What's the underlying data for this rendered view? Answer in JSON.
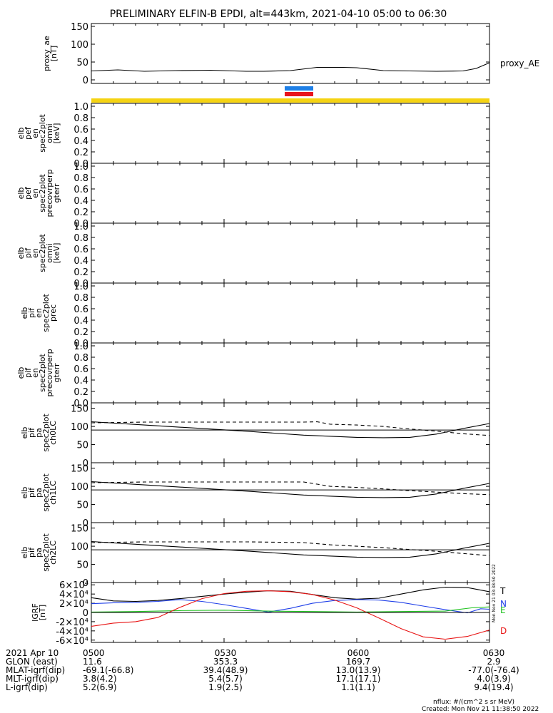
{
  "title": "PRELIMINARY ELFIN-B EPDI, alt=443km, 2021-04-10 05:00 to 06:30",
  "colors": {
    "bar_blue": "#1e7fe6",
    "bar_red": "#e8141e",
    "yellow": "#f5d312",
    "T": "#000000",
    "N": "#1f3fe8",
    "E": "#1fc21f",
    "D": "#e81414"
  },
  "chart_data": [
    {
      "type": "line",
      "ylabel": [
        "proxy_ae",
        "[nT]"
      ],
      "yticks": [
        0,
        50,
        100,
        150
      ],
      "ylim": [
        -10,
        158
      ],
      "series": [
        {
          "name": "proxy_AE",
          "x": [
            "05:00",
            "05:06",
            "05:12",
            "05:19",
            "05:27",
            "05:35",
            "05:39",
            "05:45",
            "05:51",
            "05:54",
            "05:57",
            "06:00",
            "06:06",
            "06:12",
            "06:18",
            "06:24",
            "06:27",
            "06:30"
          ],
          "values": [
            25,
            28,
            24,
            26,
            27,
            24,
            24,
            26,
            35,
            35,
            35,
            34,
            26,
            25,
            24,
            25,
            32,
            48
          ]
        }
      ]
    },
    {
      "type": "line",
      "ylabel": [
        "elb",
        "pef",
        "en",
        "spec2plot",
        "omni",
        "[keV]"
      ],
      "yticks": [
        0.0,
        0.2,
        0.4,
        0.6,
        0.8,
        1.0
      ],
      "ylim": [
        0,
        1.05
      ],
      "series": []
    },
    {
      "type": "line",
      "ylabel": [
        "elb",
        "pef",
        "en",
        "spec2plot",
        "precovrperp",
        "gterr"
      ],
      "yticks": [
        0.0,
        0.2,
        0.4,
        0.6,
        0.8,
        1.0
      ],
      "ylim": [
        0,
        1.05
      ],
      "series": []
    },
    {
      "type": "line",
      "ylabel": [
        "elb",
        "pif",
        "en",
        "spec2plot",
        "omni",
        "[keV]"
      ],
      "yticks": [
        0.0,
        0.2,
        0.4,
        0.6,
        0.8,
        1.0
      ],
      "ylim": [
        0,
        1.05
      ],
      "series": []
    },
    {
      "type": "line",
      "ylabel": [
        "elb",
        "pif",
        "en",
        "spec2plot",
        "prec"
      ],
      "yticks": [
        0.0,
        0.2,
        0.4,
        0.6,
        0.8,
        1.0
      ],
      "ylim": [
        0,
        1.05
      ],
      "series": []
    },
    {
      "type": "line",
      "ylabel": [
        "elb",
        "pif",
        "en",
        "spec2plot",
        "precovrperp",
        "gterr"
      ],
      "yticks": [
        0.0,
        0.2,
        0.4,
        0.6,
        0.8,
        1.0
      ],
      "ylim": [
        0,
        1.05
      ],
      "series": []
    },
    {
      "type": "line",
      "ylabel": [
        "elb",
        "pif",
        "pa",
        "spec2plot",
        "ch0LC"
      ],
      "yticks": [
        0,
        50,
        100,
        150
      ],
      "ylim": [
        0,
        165
      ],
      "series": [
        {
          "style": "solid",
          "x": [
            "05:00",
            "05:12",
            "05:24",
            "05:36",
            "05:48",
            "06:00",
            "06:06",
            "06:12",
            "06:18",
            "06:24",
            "06:30"
          ],
          "values": [
            113,
            104,
            95,
            86,
            76,
            70,
            69,
            70,
            79,
            94,
            108
          ]
        },
        {
          "style": "dashed",
          "x": [
            "05:00",
            "05:12",
            "05:24",
            "05:36",
            "05:48",
            "05:51",
            "05:54",
            "06:00",
            "06:06",
            "06:12",
            "06:18",
            "06:24",
            "06:30"
          ],
          "values": [
            110,
            112,
            112,
            112,
            112,
            113,
            106,
            104,
            100,
            93,
            87,
            80,
            75
          ]
        },
        {
          "style": "hline",
          "values": [
            90
          ]
        }
      ]
    },
    {
      "type": "line",
      "ylabel": [
        "elb",
        "pif",
        "pa",
        "spec2plot",
        "ch1LC"
      ],
      "yticks": [
        0,
        50,
        100,
        150
      ],
      "ylim": [
        0,
        165
      ],
      "series": [
        {
          "style": "solid",
          "x": [
            "05:00",
            "05:12",
            "05:24",
            "05:36",
            "05:48",
            "06:00",
            "06:06",
            "06:12",
            "06:18",
            "06:24",
            "06:30"
          ],
          "values": [
            113,
            104,
            95,
            86,
            76,
            70,
            69,
            70,
            79,
            94,
            108
          ]
        },
        {
          "style": "dashed",
          "x": [
            "05:00",
            "05:12",
            "05:24",
            "05:36",
            "05:48",
            "05:51",
            "05:54",
            "06:00",
            "06:06",
            "06:12",
            "06:18",
            "06:24",
            "06:30"
          ],
          "values": [
            110,
            112,
            112,
            112,
            112,
            106,
            100,
            97,
            93,
            88,
            84,
            80,
            77
          ]
        },
        {
          "style": "hline",
          "values": [
            90
          ]
        }
      ]
    },
    {
      "type": "line",
      "ylabel": [
        "elb",
        "pif",
        "pa",
        "spec2plot",
        "ch2LC"
      ],
      "yticks": [
        0,
        50,
        100,
        150
      ],
      "ylim": [
        0,
        165
      ],
      "series": [
        {
          "style": "solid",
          "x": [
            "05:00",
            "05:12",
            "05:24",
            "05:36",
            "05:48",
            "06:00",
            "06:06",
            "06:12",
            "06:18",
            "06:24",
            "06:30"
          ],
          "values": [
            113,
            104,
            95,
            86,
            76,
            70,
            69,
            70,
            79,
            94,
            108
          ]
        },
        {
          "style": "dashed",
          "x": [
            "05:00",
            "05:12",
            "05:24",
            "05:36",
            "05:48",
            "05:54",
            "06:00",
            "06:06",
            "06:12",
            "06:18",
            "06:24",
            "06:30"
          ],
          "values": [
            110,
            112,
            112,
            112,
            110,
            104,
            100,
            96,
            91,
            86,
            80,
            74
          ]
        },
        {
          "style": "hline",
          "values": [
            90
          ]
        }
      ]
    },
    {
      "type": "line",
      "ylabel": [
        "IGRF",
        "[nT]"
      ],
      "yticks": [
        "-6×10⁴",
        "-4×10⁴",
        "-2×10⁴",
        "0",
        "2×10⁴",
        "4×10⁴",
        "6×10⁴"
      ],
      "yvalues": [
        -60000,
        -40000,
        -20000,
        0,
        20000,
        40000,
        60000
      ],
      "ylim": [
        -65000,
        65000
      ],
      "series": [
        {
          "name": "T",
          "x": [
            "05:00",
            "05:05",
            "05:10",
            "05:15",
            "05:20",
            "05:25",
            "05:30",
            "05:35",
            "05:40",
            "05:45",
            "05:50",
            "05:55",
            "06:00",
            "06:05",
            "06:10",
            "06:15",
            "06:20",
            "06:25",
            "06:30"
          ],
          "values": [
            32000,
            25000,
            24000,
            26000,
            30000,
            35000,
            40000,
            44000,
            47000,
            46000,
            39000,
            32000,
            29000,
            31000,
            40000,
            49000,
            55000,
            54000,
            45000
          ]
        },
        {
          "name": "N",
          "x": [
            "05:00",
            "05:05",
            "05:10",
            "05:15",
            "05:20",
            "05:25",
            "05:30",
            "05:35",
            "05:40",
            "05:45",
            "05:50",
            "05:55",
            "06:00",
            "06:05",
            "06:10",
            "06:15",
            "06:20",
            "06:25",
            "06:28",
            "06:30"
          ],
          "values": [
            19000,
            21000,
            22000,
            24000,
            28000,
            24000,
            17000,
            9000,
            1000,
            9000,
            20000,
            26000,
            28000,
            27000,
            22000,
            14000,
            6000,
            -1000,
            8000,
            7000
          ]
        },
        {
          "name": "E",
          "x": [
            "05:00",
            "05:10",
            "05:20",
            "05:30",
            "05:40",
            "05:50",
            "06:00",
            "06:10",
            "06:20",
            "06:26",
            "06:30"
          ],
          "values": [
            1000,
            2000,
            4000,
            5000,
            3000,
            2000,
            1000,
            2000,
            3000,
            10000,
            12000
          ]
        },
        {
          "name": "D",
          "x": [
            "05:00",
            "05:05",
            "05:10",
            "05:15",
            "05:20",
            "05:25",
            "05:30",
            "05:35",
            "05:40",
            "05:45",
            "05:50",
            "05:55",
            "06:00",
            "06:05",
            "06:10",
            "06:15",
            "06:20",
            "06:25",
            "06:30"
          ],
          "values": [
            -30000,
            -23000,
            -20000,
            -11000,
            11000,
            30000,
            41000,
            46000,
            47000,
            45000,
            39000,
            27000,
            10000,
            -12000,
            -35000,
            -53000,
            -58000,
            -52000,
            -38000
          ]
        },
        {
          "style": "hline",
          "values": [
            0
          ]
        }
      ]
    }
  ],
  "time_axis": {
    "ticks": [
      "0500",
      "0530",
      "0600",
      "0630"
    ],
    "minor_minutes": 5
  },
  "ephemeris": {
    "rows": [
      {
        "label": "2021 Apr 10",
        "values": [
          "0500",
          "0530",
          "0600",
          "0630"
        ]
      },
      {
        "label": "GLON (east)",
        "values": [
          "11.6",
          "353.3",
          "169.7",
          "2.9"
        ]
      },
      {
        "label": "MLAT-igrf(dip)",
        "values": [
          "-69.1(-66.8)",
          "39.4(48.9)",
          "13.0(13.9)",
          "-77.0(-76.4)"
        ]
      },
      {
        "label": "MLT-igrf(dip)",
        "values": [
          "3.8(4.2)",
          "5.4(5.7)",
          "17.1(17.1)",
          "4.0(3.9)"
        ]
      },
      {
        "label": "L-igrf(dip)",
        "values": [
          "5.2(6.9)",
          "1.9(2.5)",
          "1.1(1.1)",
          "9.4(19.4)"
        ]
      }
    ]
  },
  "side_stamp": "Mon Nov 21 03:38:50 2022",
  "footer": {
    "line1": "nflux: #/(cm^2 s sr MeV)",
    "line2": "Created: Mon Nov 21 11:38:50 2022"
  }
}
